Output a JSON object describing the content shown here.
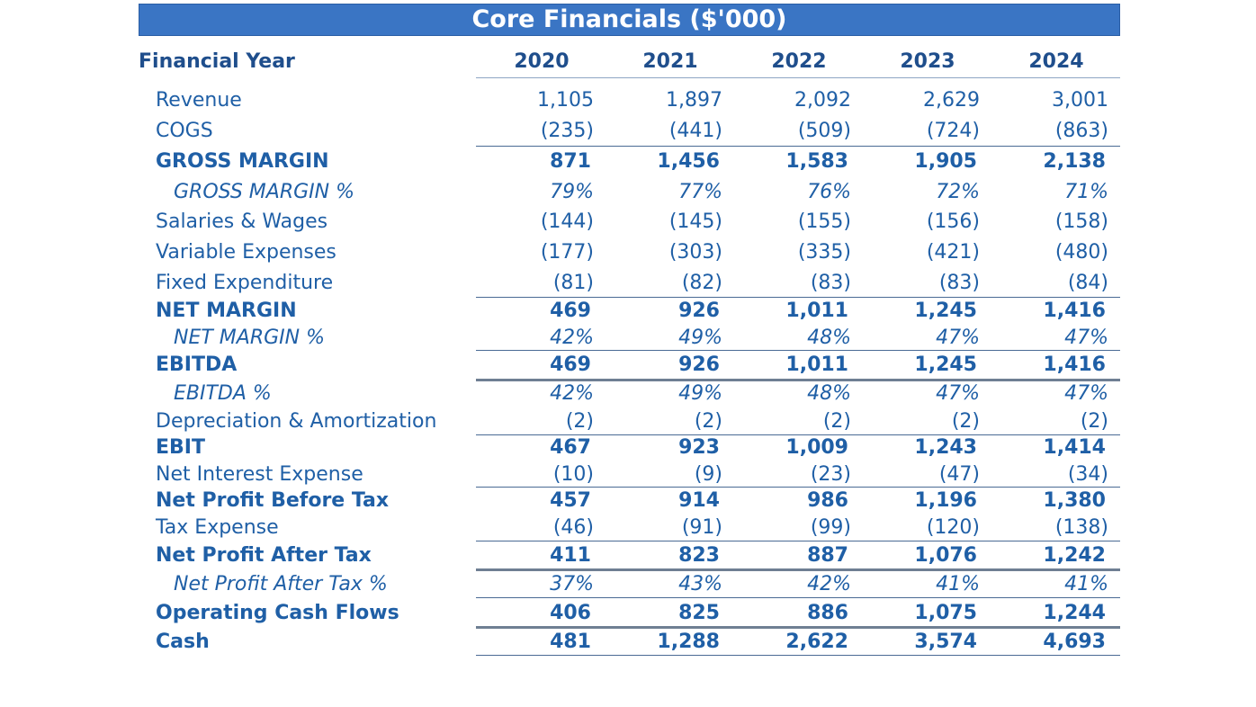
{
  "title": "Core Financials ($'000)",
  "header": {
    "label": "Financial Year",
    "years": [
      "2020",
      "2021",
      "2022",
      "2023",
      "2024"
    ]
  },
  "rows": [
    {
      "label": "Revenue",
      "values": [
        "1,105",
        "1,897",
        "2,092",
        "2,629",
        "3,001"
      ],
      "style": "normal"
    },
    {
      "label": "COGS",
      "values": [
        "(235)",
        "(441)",
        "(509)",
        "(724)",
        "(863)"
      ],
      "style": "normal"
    },
    {
      "label": "GROSS MARGIN",
      "values": [
        "871",
        "1,456",
        "1,583",
        "1,905",
        "2,138"
      ],
      "style": "bold"
    },
    {
      "label": "GROSS MARGIN %",
      "values": [
        "79%",
        "77%",
        "76%",
        "72%",
        "71%"
      ],
      "style": "pct"
    },
    {
      "label": "Salaries & Wages",
      "values": [
        "(144)",
        "(145)",
        "(155)",
        "(156)",
        "(158)"
      ],
      "style": "normal"
    },
    {
      "label": "Variable Expenses",
      "values": [
        "(177)",
        "(303)",
        "(335)",
        "(421)",
        "(480)"
      ],
      "style": "normal"
    },
    {
      "label": "Fixed Expenditure",
      "values": [
        "(81)",
        "(82)",
        "(83)",
        "(83)",
        "(84)"
      ],
      "style": "normal"
    },
    {
      "label": "NET MARGIN",
      "values": [
        "469",
        "926",
        "1,011",
        "1,245",
        "1,416"
      ],
      "style": "bold"
    },
    {
      "label": "NET MARGIN %",
      "values": [
        "42%",
        "49%",
        "48%",
        "47%",
        "47%"
      ],
      "style": "pct"
    },
    {
      "label": "EBITDA",
      "values": [
        "469",
        "926",
        "1,011",
        "1,245",
        "1,416"
      ],
      "style": "bold"
    },
    {
      "label": "EBITDA %",
      "values": [
        "42%",
        "49%",
        "48%",
        "47%",
        "47%"
      ],
      "style": "pct"
    },
    {
      "label": "Depreciation & Amortization",
      "values": [
        "(2)",
        "(2)",
        "(2)",
        "(2)",
        "(2)"
      ],
      "style": "normal"
    },
    {
      "label": "EBIT",
      "values": [
        "467",
        "923",
        "1,009",
        "1,243",
        "1,414"
      ],
      "style": "bold"
    },
    {
      "label": "Net Interest Expense",
      "values": [
        "(10)",
        "(9)",
        "(23)",
        "(47)",
        "(34)"
      ],
      "style": "normal"
    },
    {
      "label": "Net Profit Before Tax",
      "values": [
        "457",
        "914",
        "986",
        "1,196",
        "1,380"
      ],
      "style": "bold"
    },
    {
      "label": "Tax Expense",
      "values": [
        "(46)",
        "(91)",
        "(99)",
        "(120)",
        "(138)"
      ],
      "style": "normal"
    },
    {
      "label": "Net Profit After Tax",
      "values": [
        "411",
        "823",
        "887",
        "1,076",
        "1,242"
      ],
      "style": "bold"
    },
    {
      "label": "Net Profit After Tax %",
      "values": [
        "37%",
        "43%",
        "42%",
        "41%",
        "41%"
      ],
      "style": "pct"
    },
    {
      "label": "Operating Cash Flows",
      "values": [
        "406",
        "825",
        "886",
        "1,075",
        "1,244"
      ],
      "style": "bold"
    },
    {
      "label": "Cash",
      "values": [
        "481",
        "1,288",
        "2,622",
        "3,574",
        "4,693"
      ],
      "style": "bold"
    }
  ]
}
